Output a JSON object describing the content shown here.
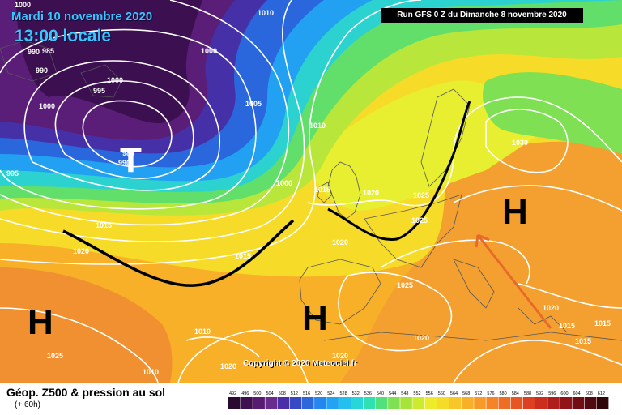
{
  "header": {
    "date": "Mardi 10 novembre 2020",
    "time": "13:00 locale",
    "run": "Run GFS 0 Z du Dimanche 8 novembre 2020"
  },
  "copyright": "Copyright © 2020 Meteociel.fr",
  "footer": {
    "title": "Géop. Z500 & pression au sol",
    "subtitle": "(+ 60h)"
  },
  "scale": {
    "labels": [
      "492",
      "496",
      "500",
      "504",
      "508",
      "512",
      "516",
      "520",
      "524",
      "528",
      "532",
      "536",
      "540",
      "544",
      "548",
      "552",
      "556",
      "560",
      "564",
      "568",
      "572",
      "576",
      "580",
      "584",
      "588",
      "592",
      "596",
      "600",
      "604",
      "608",
      "612"
    ],
    "colors": [
      "#2a0a30",
      "#3f0f4f",
      "#571c72",
      "#6a2c8c",
      "#4a2fa6",
      "#3748c4",
      "#2c68dc",
      "#2486ee",
      "#22a4f2",
      "#23c0ee",
      "#27d6d8",
      "#2fe0b0",
      "#52e07c",
      "#7ee052",
      "#a6e43a",
      "#ccea2e",
      "#ecec2a",
      "#f6dc28",
      "#f8c628",
      "#f8b028",
      "#f89a28",
      "#f48426",
      "#ee6c24",
      "#e65622",
      "#dc4020",
      "#cc2e1e",
      "#b01e1c",
      "#901418",
      "#700e14",
      "#500a10",
      "#300608"
    ]
  },
  "pressure_labels": [
    "1000",
    "990",
    "985",
    "990",
    "1000",
    "995",
    "1000",
    "985",
    "990",
    "995",
    "1010",
    "1000",
    "1005",
    "1010",
    "1000",
    "1015",
    "1020",
    "1015",
    "1025",
    "1015",
    "1020",
    "1020",
    "1030",
    "1025",
    "1025",
    "1020",
    "1015",
    "1015",
    "1010",
    "1010",
    "1020",
    "1025",
    "1020",
    "1020",
    "1015"
  ],
  "systems": [
    {
      "type": "T"
    },
    {
      "type": "H"
    },
    {
      "type": "H"
    },
    {
      "type": "H"
    }
  ]
}
